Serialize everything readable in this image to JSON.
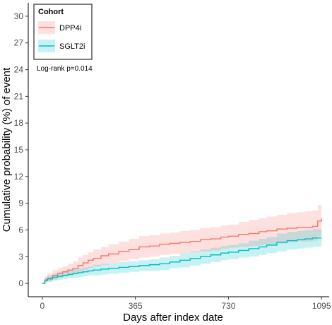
{
  "chart_data": {
    "type": "line",
    "xlabel": "Days after index date",
    "ylabel": "Cumulative probability (%) of event",
    "xlim": [
      -55,
      1125
    ],
    "ylim": [
      -1.5,
      31.5
    ],
    "xticks": [
      0,
      365,
      730,
      1095
    ],
    "yticks": [
      0,
      3,
      6,
      9,
      12,
      15,
      18,
      21,
      24,
      27,
      30
    ],
    "grid": false,
    "legend": {
      "title": "Cohort",
      "placement": "top-left"
    },
    "annotation": "Log-rank p=0.014",
    "series": [
      {
        "name": "DPP4i",
        "color": "#f8766d",
        "band_color": "#f8766d",
        "x": [
          0,
          10,
          20,
          40,
          60,
          80,
          100,
          120,
          140,
          160,
          180,
          200,
          230,
          260,
          300,
          340,
          380,
          420,
          460,
          500,
          540,
          580,
          620,
          660,
          700,
          730,
          770,
          810,
          850,
          880,
          920,
          960,
          1000,
          1030,
          1060,
          1080,
          1095
        ],
        "y": [
          0,
          0.4,
          0.6,
          0.9,
          1.1,
          1.3,
          1.5,
          1.7,
          2.0,
          2.3,
          2.6,
          2.8,
          3.1,
          3.3,
          3.6,
          3.8,
          4.1,
          4.2,
          4.4,
          4.5,
          4.6,
          4.7,
          4.9,
          5.0,
          5.2,
          5.3,
          5.5,
          5.6,
          5.8,
          5.9,
          6.1,
          6.2,
          6.3,
          6.3,
          6.4,
          7.0,
          7.3
        ],
        "lower": [
          0,
          0.1,
          0.2,
          0.4,
          0.6,
          0.8,
          0.9,
          1.0,
          1.2,
          1.5,
          1.7,
          1.9,
          2.1,
          2.3,
          2.5,
          2.7,
          2.9,
          3.0,
          3.2,
          3.3,
          3.4,
          3.5,
          3.6,
          3.7,
          3.9,
          4.0,
          4.1,
          4.2,
          4.3,
          4.4,
          4.5,
          4.6,
          4.7,
          4.7,
          4.8,
          5.3,
          5.5
        ],
        "upper": [
          0,
          0.8,
          1.1,
          1.5,
          1.7,
          1.9,
          2.2,
          2.5,
          2.9,
          3.2,
          3.5,
          3.8,
          4.1,
          4.4,
          4.7,
          5.0,
          5.3,
          5.4,
          5.6,
          5.7,
          5.9,
          6.0,
          6.2,
          6.3,
          6.5,
          6.6,
          6.9,
          7.1,
          7.3,
          7.5,
          7.7,
          7.9,
          8.0,
          8.1,
          8.2,
          8.8,
          9.1
        ]
      },
      {
        "name": "SGLT2i",
        "color": "#00bfc4",
        "band_color": "#00bfc4",
        "x": [
          0,
          10,
          20,
          40,
          60,
          80,
          100,
          120,
          140,
          160,
          180,
          200,
          230,
          260,
          300,
          340,
          380,
          420,
          460,
          500,
          540,
          580,
          620,
          660,
          700,
          730,
          770,
          810,
          850,
          880,
          920,
          960,
          1000,
          1030,
          1060,
          1080,
          1095
        ],
        "y": [
          0,
          0.3,
          0.5,
          0.7,
          0.8,
          0.9,
          1.0,
          1.1,
          1.2,
          1.3,
          1.4,
          1.5,
          1.6,
          1.7,
          1.8,
          1.9,
          2.0,
          2.1,
          2.2,
          2.4,
          2.6,
          2.8,
          3.0,
          3.2,
          3.4,
          3.5,
          3.7,
          3.9,
          4.1,
          4.3,
          4.6,
          4.8,
          4.9,
          5.0,
          5.1,
          5.1,
          5.1
        ],
        "lower": [
          0,
          0.1,
          0.2,
          0.3,
          0.4,
          0.5,
          0.6,
          0.6,
          0.7,
          0.8,
          0.9,
          0.9,
          1.0,
          1.1,
          1.2,
          1.3,
          1.4,
          1.4,
          1.5,
          1.7,
          1.8,
          2.0,
          2.2,
          2.4,
          2.6,
          2.7,
          2.9,
          3.0,
          3.2,
          3.4,
          3.6,
          3.8,
          3.9,
          4.0,
          4.1,
          4.1,
          4.1
        ],
        "upper": [
          0,
          0.6,
          0.9,
          1.1,
          1.3,
          1.4,
          1.5,
          1.6,
          1.7,
          1.8,
          1.9,
          2.1,
          2.2,
          2.3,
          2.4,
          2.5,
          2.6,
          2.7,
          2.9,
          3.1,
          3.4,
          3.6,
          3.8,
          4.0,
          4.2,
          4.3,
          4.5,
          4.8,
          5.0,
          5.2,
          5.6,
          5.8,
          5.9,
          6.0,
          6.1,
          6.1,
          6.1
        ]
      }
    ]
  }
}
